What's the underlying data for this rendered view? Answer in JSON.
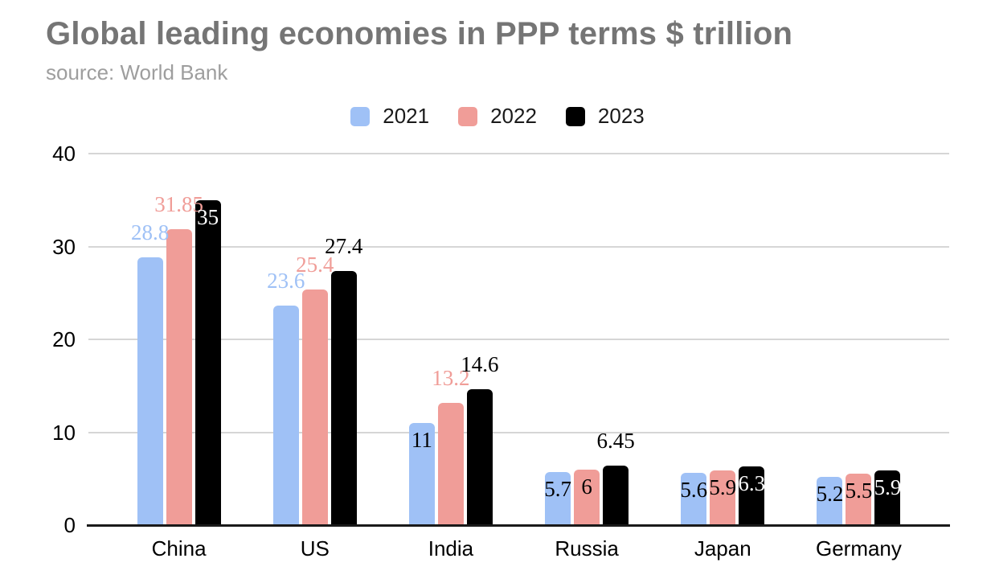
{
  "chart_data": {
    "type": "bar",
    "title": "Global leading economies in PPP terms $ trillion",
    "subtitle": "source: World Bank",
    "xlabel": "",
    "ylabel": "",
    "categories": [
      "China",
      "US",
      "India",
      "Russia",
      "Japan",
      "Germany"
    ],
    "series": [
      {
        "name": "2021",
        "color": "#9fc1f6",
        "values": [
          28.8,
          23.6,
          11,
          5.7,
          5.6,
          5.2
        ],
        "labels": [
          {
            "text": "28.8",
            "placement": "above",
            "color": "#9fc1f6"
          },
          {
            "text": "23.6",
            "placement": "above",
            "color": "#9fc1f6"
          },
          {
            "text": "11",
            "placement": "inside",
            "color": "#000000"
          },
          {
            "text": "5.7",
            "placement": "inside",
            "color": "#000000"
          },
          {
            "text": "5.6",
            "placement": "inside",
            "color": "#000000"
          },
          {
            "text": "5.2",
            "placement": "inside",
            "color": "#000000"
          }
        ]
      },
      {
        "name": "2022",
        "color": "#f09d98",
        "values": [
          31.85,
          25.4,
          13.2,
          6,
          5.9,
          5.5
        ],
        "labels": [
          {
            "text": "31.85",
            "placement": "above",
            "color": "#f09d98"
          },
          {
            "text": "25.4",
            "placement": "above",
            "color": "#f09d98"
          },
          {
            "text": "13.2",
            "placement": "above",
            "color": "#f09d98"
          },
          {
            "text": "6",
            "placement": "inside",
            "color": "#000000"
          },
          {
            "text": "5.9",
            "placement": "inside",
            "color": "#000000"
          },
          {
            "text": "5.5",
            "placement": "inside",
            "color": "#000000"
          }
        ]
      },
      {
        "name": "2023",
        "color": "#000000",
        "values": [
          35,
          27.4,
          14.6,
          6.45,
          6.3,
          5.9
        ],
        "labels": [
          {
            "text": "35",
            "placement": "inside",
            "color": "#ffffff"
          },
          {
            "text": "27.4",
            "placement": "above",
            "color": "#000000"
          },
          {
            "text": "14.6",
            "placement": "above",
            "color": "#000000"
          },
          {
            "text": "6.45",
            "placement": "above",
            "color": "#000000"
          },
          {
            "text": "6.3",
            "placement": "inside",
            "color": "#ffffff"
          },
          {
            "text": "5.9",
            "placement": "inside",
            "color": "#ffffff"
          }
        ]
      }
    ],
    "ylim": [
      0,
      40
    ],
    "yticks": [
      0,
      10,
      20,
      30,
      40
    ],
    "grid": true,
    "legend_position": "top",
    "colors": {
      "grid": "#d6d6d6",
      "axis": "#1a1a1a",
      "title": "#757575",
      "subtitle": "#9e9e9e",
      "tick_label": "#000000"
    }
  }
}
